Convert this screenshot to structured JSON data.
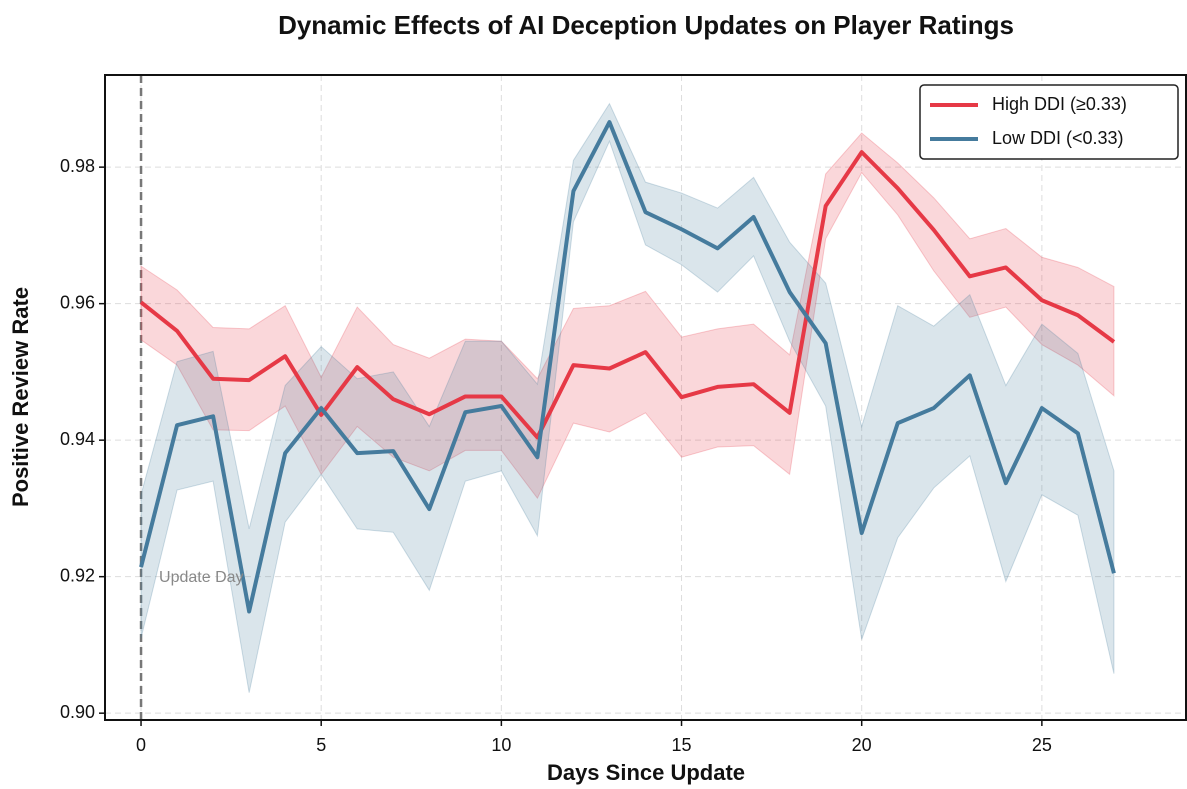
{
  "chart_data": {
    "type": "line",
    "title": "Dynamic Effects of AI Deception Updates on Player Ratings",
    "xlabel": "Days Since Update",
    "ylabel": "Positive Review Rate",
    "x": [
      0,
      1,
      2,
      3,
      4,
      5,
      6,
      7,
      8,
      9,
      10,
      11,
      12,
      13,
      14,
      15,
      16,
      17,
      18,
      19,
      20,
      21,
      22,
      23,
      24,
      25,
      26,
      27
    ],
    "series": [
      {
        "name": "High DDI (≥0.33)",
        "color": "#e63946",
        "values": [
          0.9602,
          0.956,
          0.949,
          0.9488,
          0.9523,
          0.9437,
          0.9507,
          0.946,
          0.9438,
          0.9464,
          0.9464,
          0.9404,
          0.951,
          0.9505,
          0.9529,
          0.9463,
          0.9478,
          0.9482,
          0.944,
          0.9743,
          0.9822,
          0.9769,
          0.9708,
          0.964,
          0.9653,
          0.9605,
          0.9583,
          0.9544
        ],
        "upper": [
          0.9655,
          0.962,
          0.9565,
          0.9563,
          0.9597,
          0.9492,
          0.9595,
          0.954,
          0.952,
          0.9548,
          0.9545,
          0.949,
          0.9593,
          0.9597,
          0.9618,
          0.9551,
          0.9563,
          0.957,
          0.9525,
          0.979,
          0.985,
          0.9806,
          0.9755,
          0.9695,
          0.971,
          0.9668,
          0.9653,
          0.9625
        ],
        "lower": [
          0.9547,
          0.951,
          0.9415,
          0.9414,
          0.945,
          0.935,
          0.942,
          0.9375,
          0.9355,
          0.9385,
          0.9385,
          0.9315,
          0.9425,
          0.9412,
          0.944,
          0.9375,
          0.939,
          0.9392,
          0.935,
          0.9695,
          0.9792,
          0.973,
          0.9648,
          0.958,
          0.9595,
          0.954,
          0.951,
          0.9465
        ]
      },
      {
        "name": "Low DDI (<0.33)",
        "color": "#457b9d",
        "values": [
          0.9214,
          0.9422,
          0.9435,
          0.9149,
          0.9381,
          0.9447,
          0.9381,
          0.9384,
          0.9299,
          0.9441,
          0.945,
          0.9375,
          0.9765,
          0.9866,
          0.9734,
          0.9709,
          0.9681,
          0.9727,
          0.9617,
          0.9542,
          0.9264,
          0.9425,
          0.9447,
          0.9495,
          0.9337,
          0.9447,
          0.941,
          0.9205
        ],
        "upper": [
          0.932,
          0.9515,
          0.953,
          0.927,
          0.948,
          0.9537,
          0.949,
          0.95,
          0.942,
          0.9545,
          0.9545,
          0.9482,
          0.981,
          0.9893,
          0.9778,
          0.9762,
          0.974,
          0.9785,
          0.969,
          0.963,
          0.942,
          0.9597,
          0.9567,
          0.9613,
          0.948,
          0.957,
          0.9527,
          0.9355
        ],
        "lower": [
          0.911,
          0.9327,
          0.934,
          0.903,
          0.928,
          0.935,
          0.927,
          0.9265,
          0.918,
          0.934,
          0.9355,
          0.926,
          0.972,
          0.9838,
          0.9686,
          0.9657,
          0.9617,
          0.967,
          0.9545,
          0.945,
          0.9108,
          0.9257,
          0.933,
          0.9377,
          0.9193,
          0.932,
          0.929,
          0.9058
        ]
      }
    ],
    "xlim": [
      -1,
      29
    ],
    "ylim": [
      0.899,
      0.9935
    ],
    "xticks": [
      0,
      5,
      10,
      15,
      20,
      25
    ],
    "yticks": [
      {
        "value": 0.9,
        "label": "0.90"
      },
      {
        "value": 0.92,
        "label": "0.92"
      },
      {
        "value": 0.94,
        "label": "0.94"
      },
      {
        "value": 0.96,
        "label": "0.96"
      },
      {
        "value": 0.98,
        "label": "0.98"
      }
    ],
    "grid": true,
    "legend": "upper right",
    "vline": {
      "x": 0,
      "label": "Update Day"
    }
  }
}
